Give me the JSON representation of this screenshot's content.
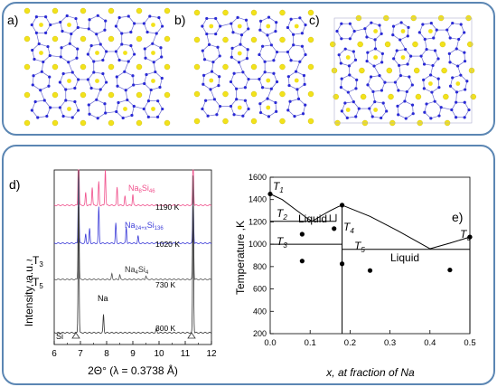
{
  "panels": {
    "a": "a)",
    "b": "b)",
    "c": "c)",
    "d": "d)",
    "e": "e)"
  },
  "xrd": {
    "ylabel": "Intensity, a.u.",
    "xlabel": "2Θ° (λ = 0.3738 Å)",
    "xticks": [
      "6",
      "7",
      "8",
      "9",
      "10",
      "11",
      "12"
    ],
    "patterns": [
      {
        "phase_main": "Na",
        "phase_sub": "8",
        "phase_main2": "Si",
        "phase_sub2": "46",
        "temp": "1190 K",
        "color": "#f0508c"
      },
      {
        "phase_main": "Na",
        "phase_sub": "24+x",
        "phase_main2": "Si",
        "phase_sub2": "136",
        "temp": "1020 K",
        "color": "#3c3cd8"
      },
      {
        "phase_main": "Na",
        "phase_sub": "4",
        "phase_main2": "Si",
        "phase_sub2": "4",
        "temp": "730 K",
        "color": "#555555"
      },
      {
        "phase_main": "Na",
        "phase_sub": "",
        "phase_main2": "",
        "phase_sub2": "",
        "temp": "300 K",
        "color": "#333333"
      }
    ],
    "si_label": "Si",
    "t3_label": "~T",
    "t3_sub": "3",
    "t5_label": "~T",
    "t5_sub": "5"
  },
  "chart_data": {
    "type": "scatter",
    "xlabel": "x, at fraction of Na",
    "ylabel": "Temperature ,K",
    "xlim": [
      0,
      0.5
    ],
    "ylim": [
      200,
      1600
    ],
    "xticks": [
      "0.0",
      "0.1",
      "0.2",
      "0.3",
      "0.4",
      "0.5"
    ],
    "yticks": [
      "200",
      "400",
      "600",
      "800",
      "1000",
      "1200",
      "1400",
      "1600"
    ],
    "points": [
      {
        "x": 0.0,
        "y": 1450
      },
      {
        "x": 0.08,
        "y": 1090
      },
      {
        "x": 0.08,
        "y": 850
      },
      {
        "x": 0.16,
        "y": 1140
      },
      {
        "x": 0.18,
        "y": 825
      },
      {
        "x": 0.18,
        "y": 1350
      },
      {
        "x": 0.25,
        "y": 765
      },
      {
        "x": 0.45,
        "y": 770
      },
      {
        "x": 0.5,
        "y": 1065
      }
    ],
    "labels": {
      "liquid1": "Liquid",
      "liquid2": "Liquid",
      "T1": "T",
      "T1sub": "1",
      "T2": "T",
      "T2sub": "2",
      "T3": "T",
      "T3sub": "3",
      "T4": "T",
      "T4sub": "4",
      "T5": "T",
      "T5sub": "5",
      "T6": "T",
      "T6sub": "6"
    }
  }
}
